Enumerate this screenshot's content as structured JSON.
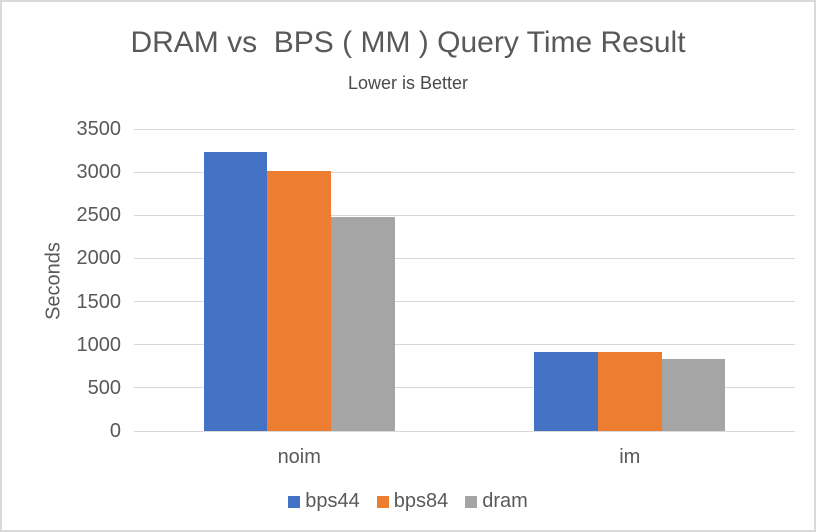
{
  "chart_data": {
    "type": "bar",
    "title": "DRAM vs  BPS ( MM ) Query Time Result",
    "subtitle": "Lower is Better",
    "ylabel": "Seconds",
    "xlabel": "",
    "categories": [
      "noim",
      "im"
    ],
    "series": [
      {
        "name": "bps44",
        "color": "#4472C4",
        "values": [
          3230,
          920
        ]
      },
      {
        "name": "bps84",
        "color": "#ED7D31",
        "values": [
          3010,
          910
        ]
      },
      {
        "name": "dram",
        "color": "#A5A5A5",
        "values": [
          2480,
          840
        ]
      }
    ],
    "ylim": [
      0,
      3500
    ],
    "ytick_step": 500,
    "ytick_labels": [
      "0",
      "500",
      "1000",
      "1500",
      "2000",
      "2500",
      "3000",
      "3500"
    ],
    "grid": true,
    "legend_position": "bottom",
    "colors": {
      "text": "#595959",
      "gridline": "#d9d9d9",
      "background": "#ffffff",
      "frame_border": "#d9d9d9"
    }
  }
}
